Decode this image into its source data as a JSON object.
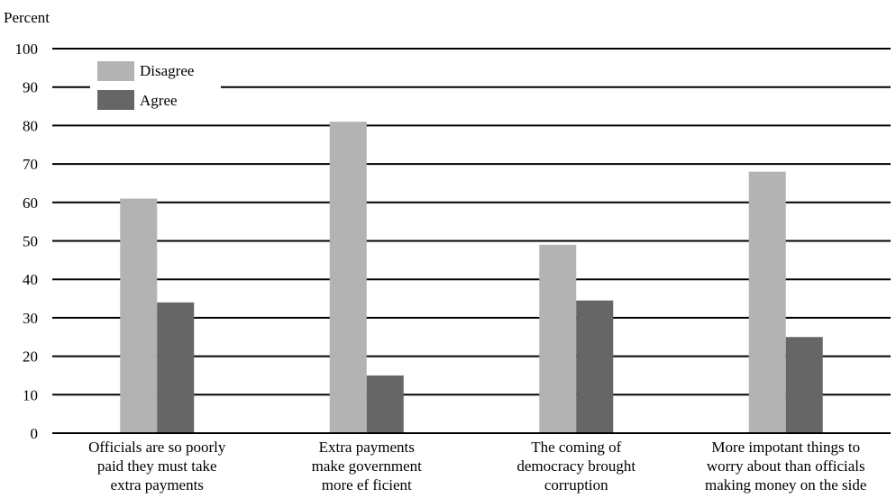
{
  "chart_data": {
    "type": "bar",
    "ylabel": "Percent",
    "xlabel": "",
    "ylim": [
      0,
      100
    ],
    "yticks": [
      0,
      10,
      20,
      30,
      40,
      50,
      60,
      70,
      80,
      90,
      100
    ],
    "grid": true,
    "legend_position": "top-left",
    "categories": [
      [
        "Officials are so poorly",
        "paid they must take",
        "extra payments"
      ],
      [
        "Extra payments",
        "make government",
        "more ef ficient"
      ],
      [
        "The coming of",
        "democracy brought",
        "corruption"
      ],
      [
        "More impotant things to",
        "worry about than officials",
        "making money on the side"
      ]
    ],
    "series": [
      {
        "name": "Disagree",
        "color": "#b3b3b3",
        "values": [
          61,
          81,
          49,
          68
        ]
      },
      {
        "name": "Agree",
        "color": "#666666",
        "values": [
          34,
          15,
          34.5,
          25
        ]
      }
    ]
  }
}
